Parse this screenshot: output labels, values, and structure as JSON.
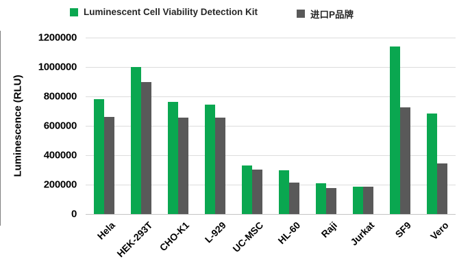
{
  "chart_data": {
    "type": "bar",
    "title": "",
    "xlabel": "",
    "ylabel": "Luminescence  (RLU)",
    "ylim": [
      0,
      1200000
    ],
    "ytick_step": 200000,
    "ytick_labels": [
      "0",
      "200000",
      "400000",
      "600000",
      "800000",
      "1000000",
      "1200000"
    ],
    "grid": "horizontal",
    "gridline_color": "#dcdcdc",
    "legend_position": "top",
    "categories": [
      "Hela",
      "HEK-293T",
      "CHO-K1",
      "L-929",
      "UC-MSC",
      "HL-60",
      "Raji",
      "Jurkat",
      "SF9",
      "Vero"
    ],
    "series": [
      {
        "name": "Luminescent Cell Viability Detection Kit",
        "color": "#0aa750",
        "values": [
          780000,
          1000000,
          762000,
          745000,
          330000,
          298000,
          210000,
          185000,
          1140000,
          685000
        ]
      },
      {
        "name": "进口P品牌",
        "color": "#595959",
        "values": [
          660000,
          900000,
          656000,
          656000,
          303000,
          214000,
          175000,
          187000,
          725000,
          342000
        ]
      }
    ]
  }
}
